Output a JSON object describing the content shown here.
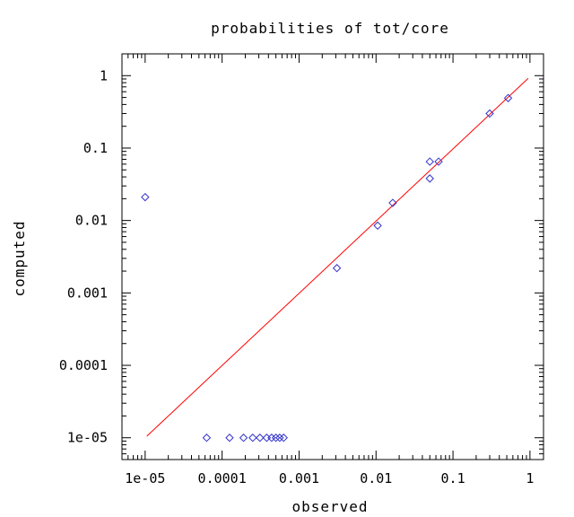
{
  "chart_data": {
    "type": "scatter",
    "title": "probabilities of tot/core",
    "xlabel": "observed",
    "ylabel": "computed",
    "x_scale": "log",
    "y_scale": "log",
    "xlim": [
      5e-06,
      1.5
    ],
    "ylim": [
      5e-06,
      2
    ],
    "x_ticks": [
      {
        "value": 1e-05,
        "label": "1e-05"
      },
      {
        "value": 0.0001,
        "label": "0.0001"
      },
      {
        "value": 0.001,
        "label": "0.001"
      },
      {
        "value": 0.01,
        "label": "0.01"
      },
      {
        "value": 0.1,
        "label": "0.1"
      },
      {
        "value": 1,
        "label": "1"
      }
    ],
    "y_ticks": [
      {
        "value": 1e-05,
        "label": "1e-05"
      },
      {
        "value": 0.0001,
        "label": "0.0001"
      },
      {
        "value": 0.001,
        "label": "0.001"
      },
      {
        "value": 0.01,
        "label": "0.01"
      },
      {
        "value": 0.1,
        "label": "0.1"
      },
      {
        "value": 1,
        "label": "1"
      }
    ],
    "grid": false,
    "series": [
      {
        "marker": "diamond",
        "color": "#3333cc",
        "points": [
          [
            1e-05,
            0.021
          ],
          [
            6.3e-05,
            1e-05
          ],
          [
            0.000125,
            1e-05
          ],
          [
            0.00019,
            1e-05
          ],
          [
            0.00025,
            1e-05
          ],
          [
            0.00031,
            1e-05
          ],
          [
            0.00038,
            1e-05
          ],
          [
            0.00044,
            1e-05
          ],
          [
            0.0005,
            1e-05
          ],
          [
            0.00056,
            1e-05
          ],
          [
            0.00063,
            1e-05
          ],
          [
            0.0031,
            0.0022
          ],
          [
            0.0105,
            0.0085
          ],
          [
            0.0165,
            0.0175
          ],
          [
            0.05,
            0.065
          ],
          [
            0.05,
            0.038
          ],
          [
            0.065,
            0.065
          ],
          [
            0.3,
            0.3
          ],
          [
            0.52,
            0.49
          ]
        ]
      }
    ],
    "fit_line": {
      "color": "#ff0000",
      "points": [
        [
          1.05e-05,
          1.05e-05
        ],
        [
          0.95,
          0.92
        ]
      ]
    }
  }
}
